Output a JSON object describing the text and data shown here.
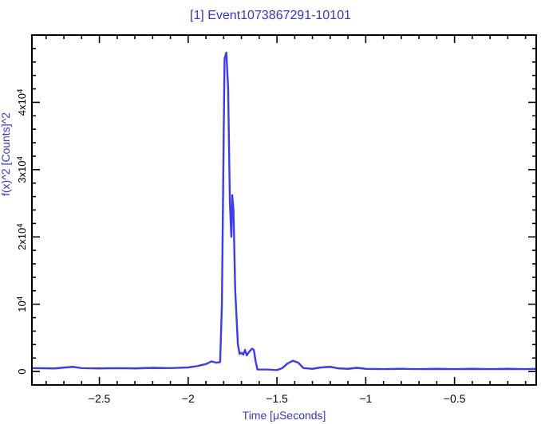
{
  "chart_data": {
    "type": "line",
    "title": "[1] Event1073867291-10101",
    "xlabel": "Time [μSeconds]",
    "ylabel": "f(x)^2 [Counts]^2",
    "x": [
      -2.88,
      -2.75,
      -2.65,
      -2.6,
      -2.5,
      -2.4,
      -2.3,
      -2.2,
      -2.1,
      -2.0,
      -1.95,
      -1.9,
      -1.87,
      -1.84,
      -1.82,
      -1.81,
      -1.8,
      -1.795,
      -1.785,
      -1.775,
      -1.765,
      -1.757,
      -1.752,
      -1.745,
      -1.735,
      -1.72,
      -1.71,
      -1.7,
      -1.69,
      -1.68,
      -1.67,
      -1.655,
      -1.64,
      -1.63,
      -1.62,
      -1.61,
      -1.55,
      -1.5,
      -1.47,
      -1.44,
      -1.41,
      -1.38,
      -1.35,
      -1.3,
      -1.25,
      -1.2,
      -1.15,
      -1.1,
      -1.05,
      -1.0,
      -0.9,
      -0.8,
      -0.7,
      -0.6,
      -0.5,
      -0.4,
      -0.3,
      -0.2,
      -0.1,
      -0.04
    ],
    "series": [
      {
        "color": "#3a3aff",
        "values": [
          500,
          450,
          700,
          500,
          450,
          500,
          450,
          550,
          500,
          600,
          800,
          1100,
          1500,
          1300,
          1400,
          10000,
          35000,
          46500,
          47400,
          42000,
          25000,
          20000,
          26200,
          24000,
          12000,
          4000,
          2600,
          2800,
          2500,
          3200,
          2400,
          3000,
          3400,
          3200,
          1500,
          300,
          300,
          200,
          500,
          1200,
          1600,
          1300,
          500,
          400,
          600,
          700,
          450,
          400,
          550,
          400,
          350,
          400,
          350,
          400,
          350,
          400,
          350,
          400,
          350,
          400
        ]
      }
    ],
    "xlim": [
      -2.88,
      -0.04
    ],
    "ylim": [
      -2000,
      50000
    ],
    "xticks": [
      {
        "value": -2.8,
        "label": null
      },
      {
        "value": -2.7,
        "label": null
      },
      {
        "value": -2.6,
        "label": null
      },
      -2.5,
      {
        "value": -2.4,
        "label": null
      },
      {
        "value": -2.3,
        "label": null
      },
      {
        "value": -2.2,
        "label": null
      },
      {
        "value": -2.1,
        "label": null
      },
      -2,
      {
        "value": -1.9,
        "label": null
      },
      {
        "value": -1.8,
        "label": null
      },
      {
        "value": -1.7,
        "label": null
      },
      {
        "value": -1.6,
        "label": null
      },
      -1.5,
      {
        "value": -1.4,
        "label": null
      },
      {
        "value": -1.3,
        "label": null
      },
      {
        "value": -1.2,
        "label": null
      },
      {
        "value": -1.1,
        "label": null
      },
      -1,
      {
        "value": -0.9,
        "label": null
      },
      {
        "value": -0.8,
        "label": null
      },
      {
        "value": -0.7,
        "label": null
      },
      {
        "value": -0.6,
        "label": null
      },
      -0.5,
      {
        "value": -0.4,
        "label": null
      },
      {
        "value": -0.3,
        "label": null
      },
      {
        "value": -0.2,
        "label": null
      },
      {
        "value": -0.1,
        "label": null
      }
    ],
    "yticks": [
      0,
      {
        "value": 2000,
        "label": null
      },
      {
        "value": 4000,
        "label": null
      },
      {
        "value": 6000,
        "label": null
      },
      {
        "value": 8000,
        "label": null
      },
      {
        "value": 10000,
        "label": "10$^{4}$"
      },
      {
        "value": 12000,
        "label": null
      },
      {
        "value": 14000,
        "label": null
      },
      {
        "value": 16000,
        "label": null
      },
      {
        "value": 18000,
        "label": null
      },
      {
        "value": 20000,
        "label": "2x10$^{4}$"
      },
      {
        "value": 22000,
        "label": null
      },
      {
        "value": 24000,
        "label": null
      },
      {
        "value": 26000,
        "label": null
      },
      {
        "value": 28000,
        "label": null
      },
      {
        "value": 30000,
        "label": "3x10$^{4}$"
      },
      {
        "value": 32000,
        "label": null
      },
      {
        "value": 34000,
        "label": null
      },
      {
        "value": 36000,
        "label": null
      },
      {
        "value": 38000,
        "label": null
      },
      {
        "value": 40000,
        "label": "4x10$^{4}$"
      },
      {
        "value": 42000,
        "label": null
      },
      {
        "value": 44000,
        "label": null
      },
      {
        "value": 46000,
        "label": null
      },
      {
        "value": 48000,
        "label": null
      }
    ],
    "grid": false,
    "marker": "none",
    "line_style": "solid"
  }
}
